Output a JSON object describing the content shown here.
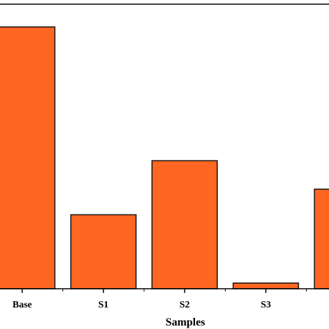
{
  "chart_data": {
    "type": "bar",
    "xlabel": "Samples",
    "categories": [
      "Base",
      "S1",
      "S2",
      "S3",
      ""
    ],
    "values": [
      9.2,
      2.6,
      4.5,
      0.2,
      3.5
    ],
    "ylim": [
      0,
      10
    ],
    "grid": false,
    "bar_color": "#ff6622",
    "bar_edge_color": "#111111",
    "axis_color": "#000000"
  }
}
